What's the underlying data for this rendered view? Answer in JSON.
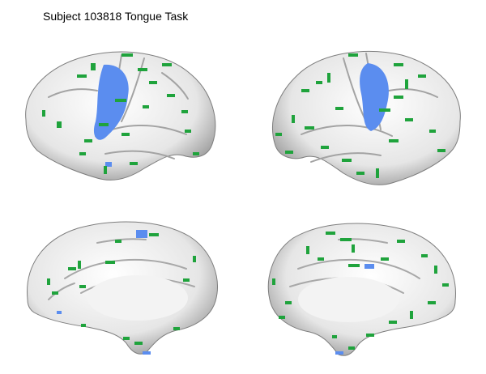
{
  "figure": {
    "title": "Subject 103818 Tongue Task"
  },
  "colors": {
    "background": "#ffffff",
    "cortex": "#e9e9e9",
    "sulcus": "#9a9a9a",
    "activation_strong": "#5b8def",
    "activation_weak": "#1fa33c"
  },
  "views": [
    {
      "name": "left-lateral-view"
    },
    {
      "name": "right-lateral-view"
    },
    {
      "name": "left-medial-view"
    },
    {
      "name": "right-medial-view"
    }
  ]
}
